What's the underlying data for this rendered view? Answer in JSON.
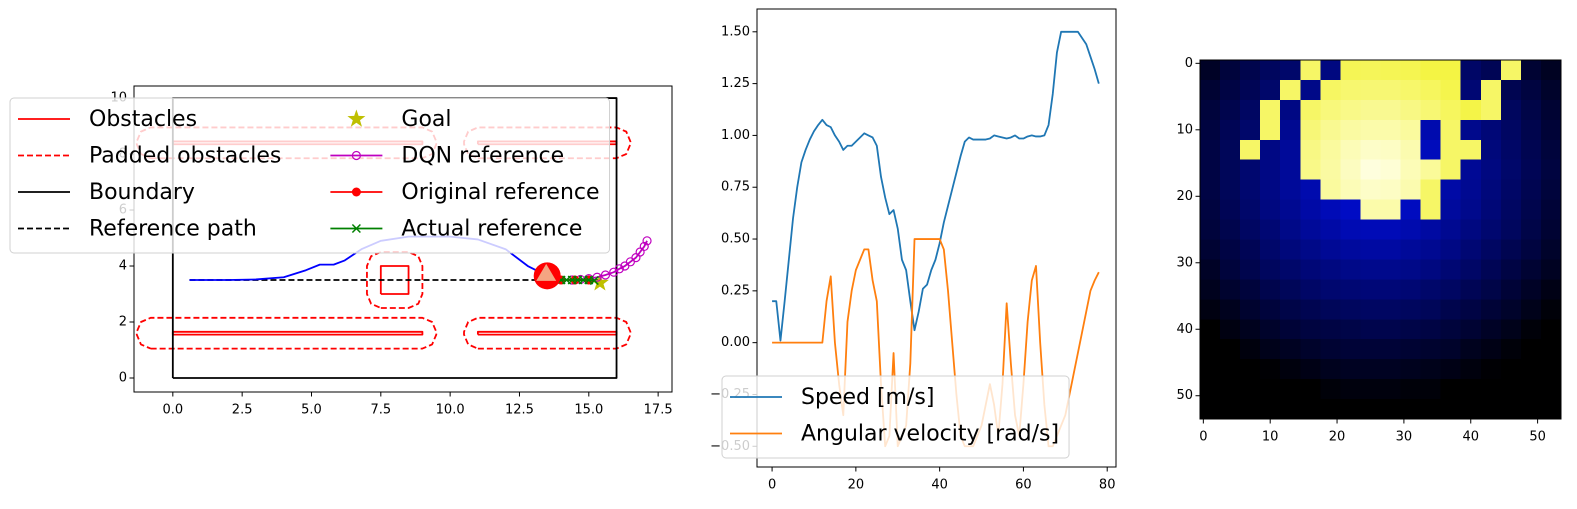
{
  "chart_data": [
    {
      "type": "line",
      "xlim": [
        -1.4,
        18.0
      ],
      "ylim": [
        -0.5,
        10.43
      ],
      "xticks": [
        {
          "value": 0,
          "label": "0.0"
        },
        2.5,
        {
          "value": 5,
          "label": "5.0"
        },
        7.5,
        {
          "value": 10,
          "label": "10.0"
        },
        12.5,
        {
          "value": 15,
          "label": "15.0"
        },
        17.5
      ],
      "yticks": [
        0,
        2,
        4,
        6,
        8,
        10
      ],
      "legend": {
        "loc": "upper left",
        "ncol": 2
      },
      "series": [
        {
          "name": "Obstacles",
          "color": "#ff0000",
          "linestyle": "solid",
          "x": [
            0,
            9,
            9,
            0,
            0,
            null,
            11,
            16,
            16,
            11,
            11,
            null,
            0,
            9,
            9,
            0,
            0,
            null,
            11,
            16,
            16,
            11,
            11,
            null,
            7.5,
            8.5,
            8.5,
            7.5,
            7.5
          ],
          "y": [
            1.55,
            1.55,
            1.65,
            1.65,
            1.55,
            null,
            1.55,
            1.55,
            1.65,
            1.65,
            1.55,
            null,
            8.35,
            8.35,
            8.45,
            8.45,
            8.35,
            null,
            8.35,
            8.35,
            8.45,
            8.45,
            8.35,
            null,
            3,
            3,
            4,
            4,
            3
          ]
        },
        {
          "name": "Padded obstacles",
          "color": "#ff0000",
          "linestyle": "dashed",
          "x": [
            -0.8,
            9,
            9.35,
            9.5,
            9.5,
            9.35,
            9,
            -0.8,
            -1.15,
            -1.3,
            -1.3,
            -1.15,
            -0.8,
            null,
            11,
            16,
            16.35,
            16.5,
            16.5,
            16.35,
            16,
            11,
            10.65,
            10.5,
            10.5,
            10.65,
            11,
            null,
            -0.8,
            9,
            9.35,
            9.5,
            9.5,
            9.35,
            9,
            -0.8,
            -1.15,
            -1.3,
            -1.3,
            -1.15,
            -0.8,
            null,
            11,
            16,
            16.35,
            16.5,
            16.5,
            16.35,
            16,
            11,
            10.65,
            10.5,
            10.5,
            10.65,
            11,
            null,
            7.5,
            8.5,
            8.85,
            9,
            9,
            8.85,
            8.5,
            7.5,
            7.15,
            7,
            7,
            7.15,
            7.5
          ],
          "y": [
            1.05,
            1.05,
            1.2,
            1.55,
            1.65,
            2.0,
            2.15,
            2.15,
            2.0,
            1.65,
            1.55,
            1.2,
            1.05,
            null,
            1.05,
            1.05,
            1.2,
            1.55,
            1.65,
            2.0,
            2.15,
            2.15,
            2.0,
            1.65,
            1.55,
            1.2,
            1.05,
            null,
            7.85,
            7.85,
            8.0,
            8.35,
            8.45,
            8.8,
            8.95,
            8.95,
            8.8,
            8.45,
            8.35,
            8.0,
            7.85,
            null,
            7.85,
            7.85,
            8.0,
            8.35,
            8.45,
            8.8,
            8.95,
            8.95,
            8.8,
            8.45,
            8.35,
            8.0,
            7.85,
            null,
            2.5,
            2.5,
            2.65,
            3,
            4,
            4.35,
            4.5,
            4.5,
            4.35,
            4,
            3,
            2.65,
            2.5
          ]
        },
        {
          "name": "Boundary",
          "color": "#000000",
          "linestyle": "solid",
          "x": [
            0,
            16,
            16,
            0,
            0
          ],
          "y": [
            0,
            0,
            10,
            10,
            0
          ]
        },
        {
          "name": "Reference path",
          "color": "#000000",
          "linestyle": "dashed",
          "x": [
            0.6,
            15.4
          ],
          "y": [
            3.5,
            3.5
          ]
        },
        {
          "color": "#0000ff",
          "linestyle": "solid",
          "x": [
            0.6,
            2,
            3,
            4,
            4.8,
            5.3,
            5.8,
            6.2,
            6.8,
            7.5,
            8.5,
            10,
            11,
            12,
            12.8,
            13.5
          ],
          "y": [
            3.5,
            3.5,
            3.52,
            3.6,
            3.85,
            4.05,
            4.05,
            4.2,
            4.6,
            4.9,
            5.05,
            5.05,
            4.95,
            4.6,
            4.0,
            3.65
          ]
        },
        {
          "name": "Goal",
          "color": "#bfbf00",
          "linestyle": "none",
          "marker": "star",
          "x": [
            15.4
          ],
          "y": [
            3.4
          ]
        },
        {
          "name": "DQN reference",
          "color": "#bf00bf",
          "linestyle": "solid",
          "marker": "circle-open",
          "x": [
            14.4,
            14.7,
            15.0,
            15.3,
            15.6,
            15.9,
            16.1,
            16.3,
            16.5,
            16.7,
            16.85,
            17.0,
            17.1
          ],
          "y": [
            3.5,
            3.52,
            3.55,
            3.6,
            3.68,
            3.78,
            3.9,
            4.0,
            4.15,
            4.3,
            4.5,
            4.7,
            4.9
          ]
        },
        {
          "name": "Original reference",
          "color": "#ff0000",
          "linestyle": "solid",
          "marker": "dot",
          "x": [
            14.0,
            14.5,
            15.0
          ],
          "y": [
            3.5,
            3.5,
            3.5
          ]
        },
        {
          "name": "Actual reference",
          "color": "#008000",
          "linestyle": "solid",
          "marker": "x",
          "x": [
            14.0,
            14.2,
            14.4,
            14.6,
            14.8,
            15.0,
            15.2
          ],
          "y": [
            3.5,
            3.5,
            3.5,
            3.5,
            3.5,
            3.5,
            3.48
          ]
        },
        {
          "color": "#ff0000",
          "linestyle": "none",
          "marker": "robot",
          "x": [
            13.5
          ],
          "y": [
            3.65
          ]
        }
      ]
    },
    {
      "type": "line",
      "xlim": [
        -3.6,
        82.1
      ],
      "ylim": [
        -0.6,
        1.61
      ],
      "xticks": [
        0,
        20,
        40,
        60,
        80
      ],
      "yticks": [
        {
          "value": -0.5,
          "label": "−0.50"
        },
        {
          "value": -0.25,
          "label": "−0.25"
        },
        {
          "value": 0,
          "label": "0.00"
        },
        0.25,
        {
          "value": 0.5,
          "label": "0.50"
        },
        0.75,
        {
          "value": 1,
          "label": "1.00"
        },
        1.25,
        {
          "value": 1.5,
          "label": "1.50"
        }
      ],
      "legend": {
        "loc": "lower left",
        "ncol": 1
      },
      "x": [
        0,
        1,
        2,
        3,
        4,
        5,
        6,
        7,
        8,
        9,
        10,
        11,
        12,
        13,
        14,
        15,
        16,
        17,
        18,
        19,
        20,
        21,
        22,
        23,
        24,
        25,
        26,
        27,
        28,
        29,
        30,
        31,
        32,
        33,
        34,
        35,
        36,
        37,
        38,
        39,
        40,
        41,
        42,
        43,
        44,
        45,
        46,
        47,
        48,
        49,
        50,
        51,
        52,
        53,
        54,
        55,
        56,
        57,
        58,
        59,
        60,
        61,
        62,
        63,
        64,
        65,
        66,
        67,
        68,
        69,
        70,
        71,
        72,
        73,
        74,
        75,
        76,
        77,
        78
      ],
      "series": [
        {
          "name": "Speed [m/s]",
          "color": "#1f77b4",
          "linestyle": "solid",
          "values": [
            0.2,
            0.2,
            0.01,
            0.2,
            0.4,
            0.6,
            0.75,
            0.87,
            0.93,
            0.98,
            1.02,
            1.05,
            1.075,
            1.05,
            1.04,
            1.0,
            0.97,
            0.93,
            0.95,
            0.95,
            0.97,
            0.99,
            1.01,
            1.0,
            0.99,
            0.95,
            0.8,
            0.7,
            0.62,
            0.64,
            0.55,
            0.4,
            0.35,
            0.2,
            0.06,
            0.15,
            0.26,
            0.28,
            0.35,
            0.4,
            0.48,
            0.58,
            0.66,
            0.74,
            0.82,
            0.9,
            0.97,
            0.99,
            0.98,
            0.98,
            0.98,
            0.98,
            0.985,
            1.0,
            0.995,
            0.99,
            0.985,
            0.99,
            1.0,
            0.985,
            0.985,
            0.995,
            1.0,
            0.995,
            0.995,
            1.0,
            1.05,
            1.2,
            1.4,
            1.5,
            1.5,
            1.5,
            1.5,
            1.5,
            1.47,
            1.44,
            1.38,
            1.32,
            1.25
          ]
        },
        {
          "name": "Angular velocity [rad/s]",
          "color": "#ff7f0e",
          "linestyle": "solid",
          "values": [
            0,
            0,
            0,
            0,
            0,
            0,
            0,
            0,
            0,
            0,
            0,
            0,
            0,
            0.2,
            0.32,
            0,
            -0.2,
            -0.35,
            0.1,
            0.25,
            0.35,
            0.4,
            0.45,
            0.45,
            0.3,
            0.2,
            -0.2,
            -0.5,
            -0.45,
            -0.05,
            -0.5,
            -0.45,
            -0.4,
            -0.1,
            0.5,
            0.5,
            0.5,
            0.5,
            0.5,
            0.5,
            0.5,
            0.45,
            0.25,
            0,
            -0.25,
            -0.45,
            -0.5,
            -0.5,
            -0.5,
            -0.45,
            -0.4,
            -0.3,
            -0.2,
            -0.3,
            -0.45,
            -0.2,
            0.19,
            -0.1,
            -0.35,
            -0.45,
            -0.2,
            0.1,
            0.3,
            0.37,
            0,
            -0.3,
            -0.5,
            -0.5,
            -0.45,
            -0.4,
            -0.35,
            -0.25,
            -0.15,
            -0.05,
            0.05,
            0.15,
            0.25,
            0.3,
            0.34
          ]
        }
      ]
    },
    {
      "type": "heatmap",
      "origin": "upper",
      "xlim": [
        -0.5,
        53.5
      ],
      "ylim": [
        -0.5,
        53.5
      ],
      "xticks": [
        0,
        10,
        20,
        30,
        40,
        50
      ],
      "yticks": [
        0,
        10,
        20,
        30,
        40,
        50
      ],
      "colorscale": [
        [
          0,
          "#000000"
        ],
        [
          0.6,
          "#0010ff"
        ],
        [
          0.62,
          "#f4f444"
        ],
        [
          1,
          "#ffffe6"
        ]
      ],
      "x": [
        -0.5,
        2.5,
        5.5,
        8.5,
        11.5,
        14.5,
        17.5,
        20.5,
        23.5,
        26.5,
        29.5,
        32.5,
        35.5,
        38.5,
        41.5,
        44.5,
        47.5,
        50.5,
        53.5
      ],
      "y": [
        -0.5,
        2.5,
        5.5,
        8.5,
        11.5,
        14.5,
        17.5,
        20.5,
        23.5,
        26.5,
        29.5,
        32.5,
        35.5,
        38.5,
        41.5,
        44.5,
        47.5,
        50.5,
        53.5
      ],
      "z": [
        [
          0.09,
          0.14,
          0.18,
          0.22,
          0.25,
          0.7,
          0.3,
          0.66,
          0.67,
          0.66,
          0.65,
          0.62,
          0.62,
          0.24,
          0.2,
          0.7,
          0.12,
          0.08
        ],
        [
          0.12,
          0.16,
          0.2,
          0.25,
          0.7,
          0.32,
          0.69,
          0.72,
          0.73,
          0.73,
          0.71,
          0.68,
          0.64,
          0.27,
          0.7,
          0.19,
          0.15,
          0.1
        ],
        [
          0.14,
          0.18,
          0.23,
          0.7,
          0.31,
          0.7,
          0.75,
          0.78,
          0.8,
          0.8,
          0.77,
          0.73,
          0.68,
          0.63,
          0.7,
          0.22,
          0.17,
          0.12
        ],
        [
          0.15,
          0.2,
          0.25,
          0.7,
          0.34,
          0.74,
          0.8,
          0.84,
          0.86,
          0.86,
          0.83,
          0.41,
          0.7,
          0.33,
          0.28,
          0.23,
          0.18,
          0.13
        ],
        [
          0.16,
          0.21,
          0.7,
          0.31,
          0.36,
          0.77,
          0.83,
          0.89,
          0.93,
          0.92,
          0.87,
          0.44,
          0.7,
          0.7,
          0.29,
          0.24,
          0.19,
          0.14
        ],
        [
          0.16,
          0.21,
          0.26,
          0.31,
          0.36,
          0.78,
          0.84,
          0.91,
          0.98,
          0.96,
          0.89,
          0.82,
          0.7,
          0.35,
          0.3,
          0.25,
          0.2,
          0.15
        ],
        [
          0.16,
          0.21,
          0.26,
          0.31,
          0.36,
          0.41,
          0.83,
          0.89,
          0.93,
          0.92,
          0.87,
          0.7,
          0.39,
          0.34,
          0.29,
          0.24,
          0.19,
          0.14
        ],
        [
          0.15,
          0.2,
          0.25,
          0.3,
          0.34,
          0.39,
          0.43,
          0.46,
          0.86,
          0.86,
          0.45,
          0.7,
          0.37,
          0.33,
          0.28,
          0.23,
          0.18,
          0.13
        ],
        [
          0.14,
          0.18,
          0.23,
          0.27,
          0.32,
          0.36,
          0.39,
          0.42,
          0.43,
          0.43,
          0.41,
          0.38,
          0.34,
          0.3,
          0.26,
          0.22,
          0.17,
          0.12
        ],
        [
          0.12,
          0.16,
          0.2,
          0.25,
          0.29,
          0.32,
          0.35,
          0.37,
          0.38,
          0.38,
          0.36,
          0.34,
          0.31,
          0.27,
          0.23,
          0.19,
          0.15,
          0.1
        ],
        [
          0.09,
          0.14,
          0.18,
          0.22,
          0.25,
          0.28,
          0.3,
          0.32,
          0.33,
          0.33,
          0.32,
          0.3,
          0.27,
          0.24,
          0.2,
          0.16,
          0.12,
          0.08
        ],
        [
          0.07,
          0.11,
          0.14,
          0.18,
          0.21,
          0.24,
          0.26,
          0.27,
          0.28,
          0.28,
          0.27,
          0.25,
          0.23,
          0.2,
          0.17,
          0.13,
          0.09,
          0.05
        ],
        [
          0.04,
          0.07,
          0.11,
          0.14,
          0.17,
          0.19,
          0.21,
          0.22,
          0.23,
          0.23,
          0.22,
          0.21,
          0.18,
          0.16,
          0.13,
          0.1,
          0.06,
          0.02
        ],
        [
          0,
          0.04,
          0.07,
          0.1,
          0.13,
          0.15,
          0.16,
          0.17,
          0.18,
          0.18,
          0.17,
          0.16,
          0.14,
          0.12,
          0.09,
          0.06,
          0.02,
          0
        ],
        [
          0,
          0,
          0.03,
          0.06,
          0.08,
          0.1,
          0.12,
          0.13,
          0.13,
          0.13,
          0.12,
          0.11,
          0.1,
          0.07,
          0.05,
          0.02,
          0,
          0
        ],
        [
          0,
          0,
          0,
          0.01,
          0.03,
          0.05,
          0.07,
          0.08,
          0.08,
          0.08,
          0.07,
          0.06,
          0.05,
          0.03,
          0.01,
          0,
          0,
          0
        ],
        [
          0,
          0,
          0,
          0,
          0,
          0,
          0.02,
          0.03,
          0.03,
          0.03,
          0.02,
          0.02,
          0,
          0,
          0,
          0,
          0,
          0
        ],
        [
          0,
          0,
          0,
          0,
          0,
          0,
          0,
          0,
          0,
          0,
          0,
          0,
          0,
          0,
          0,
          0,
          0,
          0
        ]
      ]
    }
  ]
}
